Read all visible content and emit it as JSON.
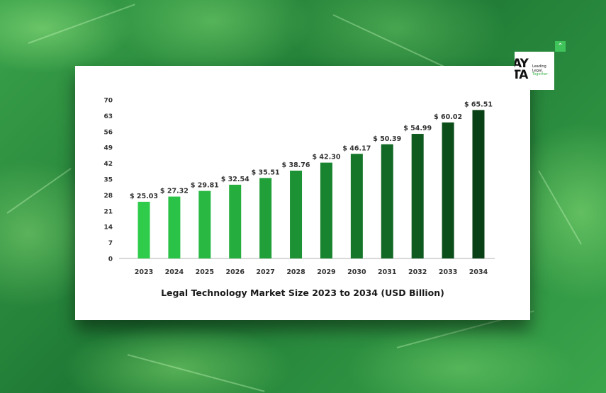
{
  "caption": "Legal Technology Market Size 2023 to 2034 (USD Billion)",
  "logo": {
    "mark_line1": "AY",
    "mark_line2": "TA",
    "text_line1": "Leading",
    "text_line2": "Legal,",
    "text_line3": "Together"
  },
  "scroll_top_icon": "double-chevron-up-icon",
  "chart_data": {
    "type": "bar",
    "title": "Legal Technology Market Size 2023 to 2034 (USD Billion)",
    "categories": [
      "2023",
      "2024",
      "2025",
      "2026",
      "2027",
      "2028",
      "2029",
      "2030",
      "2031",
      "2032",
      "2033",
      "2034"
    ],
    "values": [
      25.03,
      27.32,
      29.81,
      32.54,
      35.51,
      38.76,
      42.3,
      46.17,
      50.39,
      54.99,
      60.02,
      65.51
    ],
    "data_labels": [
      "$ 25.03",
      "$ 27.32",
      "$ 29.81",
      "$ 32.54",
      "$ 35.51",
      "$ 38.76",
      "$ 42.30",
      "$ 46.17",
      "$ 50.39",
      "$ 54.99",
      "$ 60.02",
      "$ 65.51"
    ],
    "y_ticks": [
      0,
      7,
      14,
      21,
      28,
      35,
      42,
      49,
      56,
      63,
      70
    ],
    "ylim": [
      0,
      70
    ],
    "grid": false,
    "legend": "none",
    "bar_colors": [
      "#2ecc4a",
      "#2bc347",
      "#29b943",
      "#25ad3e",
      "#21a03a",
      "#1d9235",
      "#19842f",
      "#15762a",
      "#126825",
      "#0f5b1f",
      "#0c4e1a",
      "#094015"
    ]
  }
}
